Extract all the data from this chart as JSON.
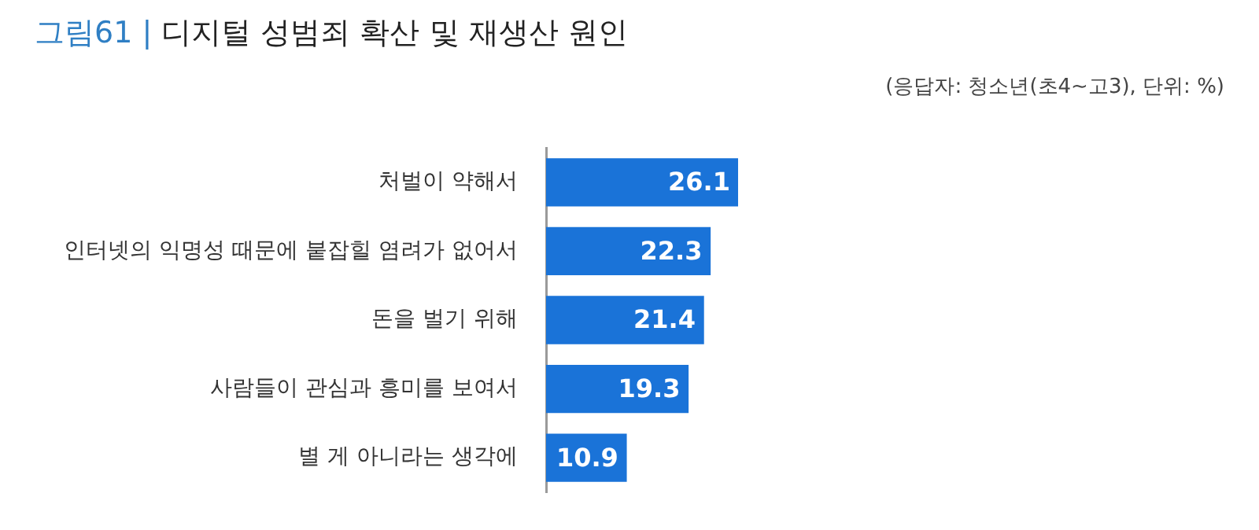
{
  "chart_data": {
    "type": "bar",
    "orientation": "horizontal",
    "title": "그림61 | 디지털 성범죄 확산 및 재생산 원인",
    "subtitle": "(응답자: 청소년(초4~고3), 단위: %)",
    "categories": [
      "처벌이 약해서",
      "인터넷의 익명성 때문에 붙잡힐 염려가 없어서",
      "돈을 벌기 위해",
      "사람들이 관심과 흥미를 보여서",
      "별 게 아니라는 생각에"
    ],
    "values": [
      26.1,
      22.3,
      21.4,
      19.3,
      10.9
    ],
    "color": "#1a73d8",
    "data_labels": true,
    "legend": false
  }
}
